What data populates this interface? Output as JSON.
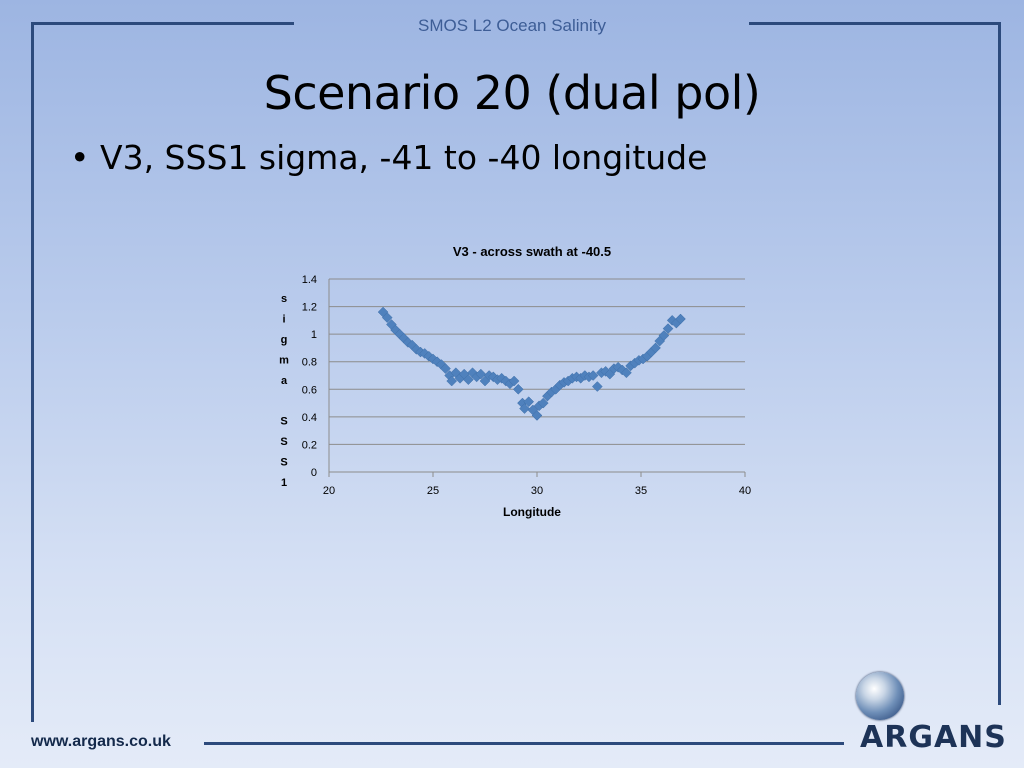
{
  "header": {
    "text": "SMOS L2 Ocean Salinity"
  },
  "slide": {
    "title": "Scenario 20 (dual pol)",
    "bullet": "V3, SSS1 sigma, -41 to -40 longitude"
  },
  "footer": {
    "url": "www.argans.co.uk",
    "logo_text": "ARGANS"
  },
  "colors": {
    "frame": "#2c4a7c",
    "marker": "#4f81bd",
    "grid": "#8c8c8c"
  },
  "icons": {
    "logo_globe": "globe-icon"
  },
  "chart_data": {
    "type": "scatter",
    "title": "V3 - across swath at -40.5",
    "xlabel": "Longitude",
    "ylabel": "sigma SSS1",
    "xlim": [
      20,
      40
    ],
    "ylim": [
      0,
      1.4
    ],
    "xticks": [
      "20",
      "25",
      "30",
      "35",
      "40"
    ],
    "yticks": [
      "0",
      "0.2",
      "0.4",
      "0.6",
      "0.8",
      "1",
      "1.2",
      "1.4"
    ],
    "grid": true,
    "marker": "diamond",
    "series": [
      {
        "points": [
          [
            22.6,
            1.16
          ],
          [
            22.8,
            1.12
          ],
          [
            23.0,
            1.07
          ],
          [
            23.2,
            1.03
          ],
          [
            23.4,
            1.0
          ],
          [
            23.6,
            0.97
          ],
          [
            23.8,
            0.94
          ],
          [
            24.0,
            0.92
          ],
          [
            24.2,
            0.89
          ],
          [
            24.4,
            0.87
          ],
          [
            24.6,
            0.86
          ],
          [
            24.8,
            0.84
          ],
          [
            25.0,
            0.82
          ],
          [
            25.2,
            0.8
          ],
          [
            25.4,
            0.78
          ],
          [
            25.6,
            0.75
          ],
          [
            25.8,
            0.7
          ],
          [
            25.9,
            0.66
          ],
          [
            26.1,
            0.72
          ],
          [
            26.3,
            0.68
          ],
          [
            26.5,
            0.71
          ],
          [
            26.7,
            0.67
          ],
          [
            26.9,
            0.72
          ],
          [
            27.1,
            0.69
          ],
          [
            27.3,
            0.71
          ],
          [
            27.5,
            0.66
          ],
          [
            27.7,
            0.7
          ],
          [
            27.9,
            0.69
          ],
          [
            28.1,
            0.67
          ],
          [
            28.3,
            0.68
          ],
          [
            28.5,
            0.66
          ],
          [
            28.7,
            0.64
          ],
          [
            28.9,
            0.66
          ],
          [
            29.1,
            0.6
          ],
          [
            29.3,
            0.5
          ],
          [
            29.4,
            0.46
          ],
          [
            29.6,
            0.51
          ],
          [
            29.8,
            0.45
          ],
          [
            30.0,
            0.41
          ],
          [
            30.1,
            0.48
          ],
          [
            30.3,
            0.5
          ],
          [
            30.5,
            0.55
          ],
          [
            30.7,
            0.58
          ],
          [
            30.9,
            0.6
          ],
          [
            31.1,
            0.63
          ],
          [
            31.3,
            0.65
          ],
          [
            31.5,
            0.66
          ],
          [
            31.7,
            0.68
          ],
          [
            31.9,
            0.69
          ],
          [
            32.1,
            0.68
          ],
          [
            32.3,
            0.7
          ],
          [
            32.5,
            0.69
          ],
          [
            32.7,
            0.7
          ],
          [
            32.9,
            0.62
          ],
          [
            33.1,
            0.72
          ],
          [
            33.3,
            0.73
          ],
          [
            33.5,
            0.71
          ],
          [
            33.7,
            0.75
          ],
          [
            33.9,
            0.76
          ],
          [
            34.1,
            0.74
          ],
          [
            34.3,
            0.72
          ],
          [
            34.5,
            0.77
          ],
          [
            34.7,
            0.79
          ],
          [
            34.9,
            0.81
          ],
          [
            35.1,
            0.82
          ],
          [
            35.3,
            0.84
          ],
          [
            35.5,
            0.87
          ],
          [
            35.7,
            0.9
          ],
          [
            35.9,
            0.95
          ],
          [
            36.1,
            0.99
          ],
          [
            36.3,
            1.04
          ],
          [
            36.5,
            1.1
          ],
          [
            36.7,
            1.08
          ],
          [
            36.9,
            1.11
          ]
        ]
      }
    ]
  }
}
